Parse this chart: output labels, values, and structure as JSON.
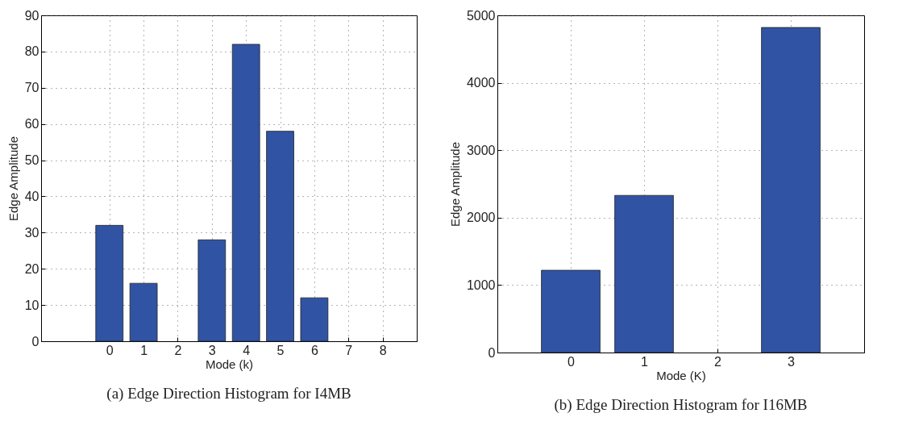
{
  "chart_data": [
    {
      "type": "bar",
      "title": "(a) Edge Direction Histogram for I4MB",
      "xlabel": "Mode (k)",
      "ylabel": "Edge Amplitude",
      "x": [
        0,
        1,
        2,
        3,
        4,
        5,
        6,
        7,
        8
      ],
      "values": [
        32,
        16,
        0,
        28,
        82,
        58,
        12,
        0,
        0
      ],
      "color": "#3053a4",
      "xlim": [
        -2,
        9
      ],
      "xticks": [
        0,
        1,
        2,
        3,
        4,
        5,
        6,
        7,
        8
      ],
      "ylim": [
        0,
        90
      ],
      "yticks": [
        0,
        10,
        20,
        30,
        40,
        50,
        60,
        70,
        80,
        90
      ],
      "grid": true
    },
    {
      "type": "bar",
      "title": "(b) Edge Direction Histogram for I16MB",
      "xlabel": "Mode (K)",
      "ylabel": "Edge Amplitude",
      "x": [
        0,
        1,
        2,
        3
      ],
      "values": [
        1220,
        2330,
        0,
        4820
      ],
      "color": "#3053a4",
      "xlim": [
        -1,
        4
      ],
      "xticks": [
        0,
        1,
        2,
        3
      ],
      "ylim": [
        0,
        5000
      ],
      "yticks": [
        0,
        1000,
        2000,
        3000,
        4000,
        5000
      ],
      "grid": true
    }
  ]
}
